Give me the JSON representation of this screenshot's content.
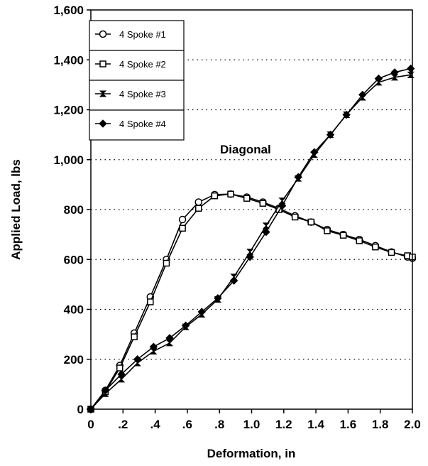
{
  "chart_data": {
    "type": "line",
    "xlabel": "Deformation, in",
    "ylabel": "Applied Load, lbs",
    "xlim": [
      0,
      2.0
    ],
    "ylim": [
      0,
      1600
    ],
    "x_ticks": [
      0,
      0.2,
      0.4,
      0.6,
      0.8,
      1.0,
      1.2,
      1.4,
      1.6,
      1.8,
      2.0
    ],
    "x_tick_labels": [
      "0",
      ".2",
      ".4",
      ".6",
      ".8",
      "1.0",
      "1.2",
      "1.4",
      "1.6",
      "1.8",
      "2.0"
    ],
    "y_ticks": [
      0,
      200,
      400,
      600,
      800,
      1000,
      1200,
      1400,
      1600
    ],
    "y_tick_labels": [
      "0",
      "200",
      "400",
      "600",
      "800",
      "1,000",
      "1,200",
      "1,400",
      "1,600"
    ],
    "grid": "horizontal dotted",
    "legend_position": "top-left",
    "annotation": "Diagonal",
    "series": [
      {
        "name": "4 Spoke #1",
        "marker": "circle",
        "x": [
          0,
          0.09,
          0.18,
          0.27,
          0.37,
          0.47,
          0.57,
          0.67,
          0.77,
          0.87,
          0.97,
          1.07,
          1.17,
          1.27,
          1.37,
          1.47,
          1.57,
          1.67,
          1.77,
          1.87,
          1.97,
          2.0
        ],
        "values": [
          0,
          75,
          175,
          305,
          450,
          600,
          760,
          830,
          860,
          862,
          850,
          830,
          805,
          775,
          750,
          720,
          700,
          680,
          655,
          630,
          610,
          605
        ]
      },
      {
        "name": "4 Spoke #2",
        "marker": "square",
        "x": [
          0,
          0.09,
          0.18,
          0.27,
          0.37,
          0.47,
          0.57,
          0.67,
          0.77,
          0.87,
          0.97,
          1.07,
          1.17,
          1.27,
          1.37,
          1.47,
          1.57,
          1.67,
          1.77,
          1.87,
          1.97,
          2.0
        ],
        "values": [
          0,
          70,
          165,
          290,
          430,
          585,
          725,
          805,
          855,
          862,
          845,
          825,
          800,
          770,
          750,
          715,
          697,
          675,
          650,
          628,
          615,
          610
        ]
      },
      {
        "name": "4 Spoke #3",
        "marker": "bowtie",
        "x": [
          0,
          0.09,
          0.19,
          0.29,
          0.39,
          0.49,
          0.59,
          0.69,
          0.79,
          0.89,
          0.99,
          1.09,
          1.19,
          1.29,
          1.39,
          1.49,
          1.59,
          1.69,
          1.79,
          1.89,
          1.99
        ],
        "values": [
          0,
          62,
          120,
          185,
          232,
          265,
          330,
          380,
          440,
          530,
          630,
          735,
          835,
          925,
          1020,
          1100,
          1180,
          1250,
          1310,
          1330,
          1340
        ]
      },
      {
        "name": "4 Spoke #4",
        "marker": "diamond",
        "x": [
          0,
          0.09,
          0.19,
          0.29,
          0.39,
          0.49,
          0.59,
          0.69,
          0.79,
          0.89,
          0.99,
          1.09,
          1.19,
          1.29,
          1.39,
          1.49,
          1.59,
          1.69,
          1.79,
          1.89,
          1.99
        ],
        "values": [
          0,
          75,
          140,
          200,
          250,
          285,
          335,
          390,
          445,
          515,
          610,
          710,
          815,
          930,
          1030,
          1100,
          1180,
          1260,
          1325,
          1350,
          1365
        ]
      }
    ]
  }
}
